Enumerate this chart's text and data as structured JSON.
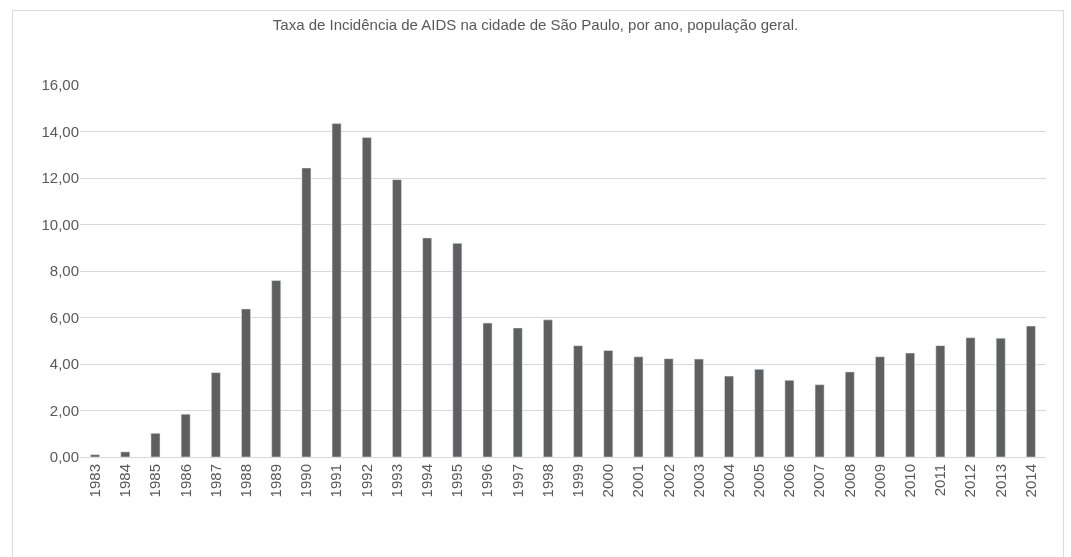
{
  "chart_data": {
    "type": "bar",
    "title": "Taxa de Incidência de AIDS na cidade de São Paulo, por ano, população geral.",
    "categories": [
      "1983",
      "1984",
      "1985",
      "1986",
      "1987",
      "1988",
      "1989",
      "1990",
      "1991",
      "1992",
      "1993",
      "1994",
      "1995",
      "1996",
      "1997",
      "1998",
      "1999",
      "2000",
      "2001",
      "2002",
      "2003",
      "2004",
      "2005",
      "2006",
      "2007",
      "2008",
      "2009",
      "2010",
      "2011",
      "2012",
      "2013",
      "2014"
    ],
    "values": [
      0.1,
      0.22,
      1.02,
      1.84,
      3.63,
      6.37,
      7.59,
      12.43,
      14.34,
      13.74,
      11.93,
      9.42,
      9.19,
      5.76,
      5.55,
      5.9,
      4.79,
      4.58,
      4.31,
      4.23,
      4.21,
      3.48,
      3.77,
      3.3,
      3.11,
      3.66,
      4.31,
      4.47,
      4.79,
      5.13,
      5.11,
      5.63
    ],
    "color": "#5f5f5f",
    "ylim": [
      0,
      16
    ],
    "yticks": [
      {
        "value": 0,
        "label": "0,00"
      },
      {
        "value": 2,
        "label": "2,00"
      },
      {
        "value": 4,
        "label": "4,00"
      },
      {
        "value": 6,
        "label": "6,00"
      },
      {
        "value": 8,
        "label": "8,00"
      },
      {
        "value": 10,
        "label": "10,00"
      },
      {
        "value": 12,
        "label": "12,00"
      },
      {
        "value": 14,
        "label": "14,00"
      },
      {
        "value": 16,
        "label": "16,00"
      }
    ],
    "grid": "y",
    "legend": false
  }
}
